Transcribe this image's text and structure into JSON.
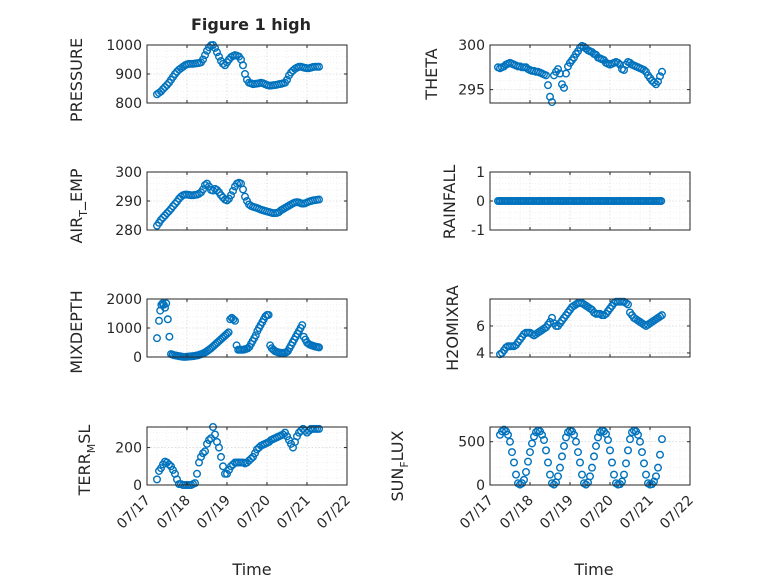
{
  "figure": {
    "title": "Figure 1 high",
    "xlabel": "Time"
  },
  "x_ticks": [
    "07/17",
    "07/18",
    "07/19",
    "07/20",
    "07/21",
    "07/22"
  ],
  "colors": {
    "marker": "#0072bd",
    "axis": "#262626",
    "grid": "#d0d0d0"
  },
  "chart_data": [
    {
      "type": "scatter",
      "ylabel": "PRESSURE",
      "ylim": [
        800,
        1000
      ],
      "yticks": [
        "800",
        "900",
        "1000"
      ],
      "grid": true,
      "x": [
        17.25,
        17.3,
        17.35,
        17.4,
        17.45,
        17.5,
        17.55,
        17.6,
        17.65,
        17.7,
        17.75,
        17.8,
        17.85,
        17.9,
        17.95,
        18.0,
        18.05,
        18.1,
        18.15,
        18.2,
        18.25,
        18.3,
        18.35,
        18.4,
        18.45,
        18.5,
        18.55,
        18.6,
        18.65,
        18.7,
        18.75,
        18.8,
        18.85,
        18.9,
        18.95,
        19.0,
        19.05,
        19.1,
        19.15,
        19.2,
        19.25,
        19.3,
        19.35,
        19.4,
        19.45,
        19.5,
        19.55,
        19.6,
        19.65,
        19.7,
        19.75,
        19.8,
        19.85,
        19.9,
        19.95,
        20.0,
        20.05,
        20.1,
        20.15,
        20.2,
        20.25,
        20.3,
        20.35,
        20.4,
        20.45,
        20.5,
        20.55,
        20.6,
        20.65,
        20.7,
        20.75,
        20.8,
        20.85,
        20.9,
        20.95,
        21.0,
        21.05,
        21.1,
        21.15,
        21.2,
        21.25,
        21.3
      ],
      "y": [
        830,
        835,
        840,
        848,
        855,
        862,
        870,
        880,
        890,
        900,
        908,
        915,
        920,
        925,
        930,
        933,
        935,
        935,
        935,
        936,
        937,
        938,
        940,
        950,
        965,
        980,
        992,
        999,
        1000,
        990,
        975,
        960,
        945,
        935,
        930,
        940,
        950,
        958,
        962,
        965,
        963,
        960,
        950,
        930,
        900,
        880,
        870,
        868,
        865,
        866,
        867,
        868,
        870,
        868,
        865,
        862,
        860,
        860,
        861,
        862,
        863,
        865,
        866,
        868,
        870,
        880,
        895,
        905,
        912,
        918,
        922,
        925,
        925,
        923,
        921,
        920,
        920,
        922,
        924,
        925,
        925,
        925
      ]
    },
    {
      "type": "scatter",
      "ylabel": "THETA",
      "ylim": [
        293.5,
        300
      ],
      "yticks": [
        "295",
        "300"
      ],
      "grid": true,
      "x": [
        17.2,
        17.25,
        17.3,
        17.35,
        17.4,
        17.45,
        17.5,
        17.55,
        17.6,
        17.65,
        17.7,
        17.75,
        17.8,
        17.85,
        17.9,
        17.95,
        18.0,
        18.05,
        18.1,
        18.15,
        18.2,
        18.25,
        18.3,
        18.35,
        18.4,
        18.45,
        18.5,
        18.55,
        18.6,
        18.65,
        18.7,
        18.75,
        18.8,
        18.85,
        18.9,
        18.95,
        19.0,
        19.05,
        19.1,
        19.15,
        19.2,
        19.25,
        19.3,
        19.35,
        19.4,
        19.45,
        19.5,
        19.55,
        19.6,
        19.65,
        19.7,
        19.75,
        19.8,
        19.85,
        19.9,
        19.95,
        20.0,
        20.05,
        20.1,
        20.15,
        20.2,
        20.25,
        20.3,
        20.35,
        20.4,
        20.45,
        20.5,
        20.55,
        20.6,
        20.65,
        20.7,
        20.75,
        20.8,
        20.85,
        20.9,
        20.95,
        21.0,
        21.05,
        21.1,
        21.15,
        21.2,
        21.25,
        21.3
      ],
      "y": [
        297.5,
        297.4,
        297.5,
        297.6,
        297.8,
        297.9,
        298.0,
        297.9,
        297.8,
        297.7,
        297.6,
        297.6,
        297.5,
        297.5,
        297.5,
        297.3,
        297.2,
        297.1,
        297.1,
        297.0,
        297.0,
        296.9,
        296.8,
        296.7,
        296.6,
        295.5,
        294.2,
        293.6,
        296.6,
        297.0,
        297.3,
        296.8,
        295.6,
        295.2,
        296.8,
        297.6,
        298.0,
        298.3,
        298.6,
        299.0,
        299.3,
        299.7,
        299.9,
        299.8,
        299.6,
        299.4,
        299.3,
        299.2,
        299.0,
        298.9,
        298.6,
        298.5,
        298.4,
        298.3,
        298.0,
        297.9,
        297.8,
        297.9,
        298.0,
        298.1,
        298.0,
        297.8,
        297.3,
        297.2,
        297.8,
        298.1,
        298.0,
        297.8,
        297.7,
        297.6,
        297.5,
        297.4,
        297.3,
        297.2,
        297.0,
        296.6,
        296.3,
        296.0,
        295.8,
        295.6,
        295.9,
        296.5,
        297.0
      ]
    },
    {
      "type": "scatter",
      "ylabel": "AIRTEMP",
      "ylim": [
        280,
        300
      ],
      "yticks": [
        "280",
        "290",
        "300"
      ],
      "grid": true,
      "x": [
        17.25,
        17.3,
        17.35,
        17.4,
        17.45,
        17.5,
        17.55,
        17.6,
        17.65,
        17.7,
        17.75,
        17.8,
        17.85,
        17.9,
        17.95,
        18.0,
        18.05,
        18.1,
        18.15,
        18.2,
        18.25,
        18.3,
        18.35,
        18.4,
        18.45,
        18.5,
        18.55,
        18.6,
        18.65,
        18.7,
        18.75,
        18.8,
        18.85,
        18.9,
        18.95,
        19.0,
        19.05,
        19.1,
        19.15,
        19.2,
        19.25,
        19.3,
        19.35,
        19.4,
        19.45,
        19.5,
        19.55,
        19.6,
        19.65,
        19.7,
        19.75,
        19.8,
        19.85,
        19.9,
        19.95,
        20.0,
        20.05,
        20.1,
        20.15,
        20.2,
        20.25,
        20.3,
        20.35,
        20.4,
        20.45,
        20.5,
        20.55,
        20.6,
        20.65,
        20.7,
        20.75,
        20.8,
        20.85,
        20.9,
        20.95,
        21.0,
        21.05,
        21.1,
        21.15,
        21.2,
        21.25,
        21.3
      ],
      "y": [
        281.5,
        282.5,
        283.5,
        284.3,
        285,
        285.8,
        286.5,
        287.3,
        288.2,
        289,
        289.8,
        290.8,
        291.5,
        292,
        292.2,
        292.2,
        292.1,
        292.0,
        292.0,
        292.1,
        292.2,
        292.5,
        293,
        294,
        295.5,
        296,
        295,
        293.8,
        293.6,
        294.2,
        293.8,
        293,
        292,
        291.2,
        290.5,
        290.2,
        290.8,
        292,
        293.5,
        295,
        296,
        296.3,
        296,
        294,
        291.5,
        290,
        288.8,
        288.3,
        288,
        287.8,
        287.6,
        287.3,
        287,
        286.8,
        286.6,
        286.4,
        286.2,
        286,
        285.8,
        285.8,
        285.9,
        286.2,
        286.8,
        287.2,
        287.6,
        288,
        288.4,
        288.8,
        289.2,
        289.5,
        289.6,
        289.5,
        289.2,
        289.1,
        289.2,
        289.5,
        289.8,
        290,
        290.2,
        290.3,
        290.4,
        290.5
      ]
    },
    {
      "type": "scatter",
      "ylabel": "RAINFALL",
      "ylim": [
        -1,
        1
      ],
      "yticks": [
        "-1",
        "0",
        "1"
      ],
      "grid": true,
      "x_start": 17.2,
      "x_end": 21.3,
      "x_step": 0.04,
      "constant_value": 0
    },
    {
      "type": "scatter",
      "ylabel": "MIXDEPTH",
      "ylim": [
        0,
        2000
      ],
      "yticks": [
        "0",
        "1000",
        "2000"
      ],
      "grid": true,
      "x": [
        17.25,
        17.3,
        17.33,
        17.36,
        17.39,
        17.42,
        17.45,
        17.48,
        17.52,
        17.56,
        17.6,
        17.64,
        17.68,
        17.72,
        17.76,
        17.8,
        17.84,
        17.88,
        17.92,
        17.96,
        18.0,
        18.04,
        18.08,
        18.12,
        18.16,
        18.2,
        18.24,
        18.28,
        18.32,
        18.36,
        18.4,
        18.44,
        18.48,
        18.52,
        18.56,
        18.6,
        18.64,
        18.68,
        18.72,
        18.76,
        18.8,
        18.84,
        18.88,
        18.92,
        18.96,
        19.0,
        19.04,
        19.08,
        19.12,
        19.16,
        19.2,
        19.24,
        19.28,
        19.32,
        19.36,
        19.4,
        19.44,
        19.48,
        19.52,
        19.56,
        19.6,
        19.64,
        19.68,
        19.72,
        19.76,
        19.8,
        19.84,
        19.88,
        19.92,
        19.96,
        20.0,
        20.04,
        20.08,
        20.12,
        20.16,
        20.2,
        20.24,
        20.28,
        20.32,
        20.36,
        20.4,
        20.44,
        20.48,
        20.52,
        20.56,
        20.6,
        20.64,
        20.68,
        20.72,
        20.76,
        20.8,
        20.84,
        20.88,
        20.92,
        20.96,
        21.0,
        21.04,
        21.08,
        21.12,
        21.16,
        21.2,
        21.24,
        21.28,
        21.3
      ],
      "y": [
        650,
        1250,
        1600,
        1800,
        1850,
        1800,
        1700,
        1850,
        1300,
        700,
        100,
        80,
        60,
        50,
        40,
        30,
        20,
        10,
        5,
        5,
        10,
        15,
        20,
        25,
        30,
        40,
        50,
        60,
        80,
        100,
        120,
        150,
        180,
        220,
        260,
        300,
        350,
        400,
        450,
        500,
        550,
        600,
        650,
        700,
        750,
        800,
        850,
        1300,
        1350,
        1300,
        1250,
        400,
        250,
        250,
        250,
        250,
        260,
        280,
        300,
        350,
        450,
        550,
        650,
        750,
        900,
        1000,
        1100,
        1200,
        1300,
        1400,
        1450,
        1450,
        400,
        300,
        250,
        200,
        180,
        160,
        150,
        140,
        140,
        150,
        160,
        200,
        300,
        400,
        500,
        600,
        700,
        800,
        900,
        1000,
        1100,
        700,
        600,
        500,
        450,
        420,
        400,
        380,
        360,
        350,
        340,
        330
      ]
    },
    {
      "type": "scatter",
      "ylabel": "H2OMIXRA",
      "ylim": [
        3.7,
        8
      ],
      "yticks": [
        "4",
        "6"
      ],
      "grid": true,
      "x": [
        17.25,
        17.3,
        17.35,
        17.4,
        17.45,
        17.5,
        17.55,
        17.6,
        17.65,
        17.7,
        17.75,
        17.8,
        17.85,
        17.9,
        17.95,
        18.0,
        18.05,
        18.1,
        18.15,
        18.2,
        18.25,
        18.3,
        18.35,
        18.4,
        18.45,
        18.5,
        18.55,
        18.6,
        18.65,
        18.7,
        18.75,
        18.8,
        18.85,
        18.9,
        18.95,
        19.0,
        19.05,
        19.1,
        19.15,
        19.2,
        19.25,
        19.3,
        19.35,
        19.4,
        19.45,
        19.5,
        19.55,
        19.6,
        19.65,
        19.7,
        19.75,
        19.8,
        19.85,
        19.9,
        19.95,
        20.0,
        20.05,
        20.1,
        20.15,
        20.2,
        20.25,
        20.3,
        20.35,
        20.4,
        20.45,
        20.5,
        20.55,
        20.6,
        20.65,
        20.7,
        20.75,
        20.8,
        20.85,
        20.9,
        20.95,
        21.0,
        21.05,
        21.1,
        21.15,
        21.2,
        21.25,
        21.3
      ],
      "y": [
        3.9,
        4.0,
        4.2,
        4.4,
        4.5,
        4.5,
        4.5,
        4.5,
        4.6,
        4.8,
        5.0,
        5.2,
        5.4,
        5.5,
        5.5,
        5.5,
        5.4,
        5.3,
        5.4,
        5.5,
        5.6,
        5.7,
        5.8,
        5.9,
        6.1,
        6.3,
        6.6,
        6.2,
        6.0,
        6.0,
        6.2,
        6.4,
        6.6,
        6.8,
        7.0,
        7.2,
        7.4,
        7.5,
        7.6,
        7.7,
        7.7,
        7.7,
        7.6,
        7.5,
        7.4,
        7.3,
        7.2,
        7.0,
        6.9,
        6.9,
        6.9,
        6.8,
        6.8,
        6.9,
        7.1,
        7.3,
        7.5,
        7.7,
        7.8,
        7.8,
        7.8,
        7.8,
        7.8,
        7.7,
        7.6,
        7.0,
        6.8,
        6.6,
        6.5,
        6.4,
        6.3,
        6.2,
        6.1,
        6.0,
        6.1,
        6.2,
        6.3,
        6.4,
        6.5,
        6.6,
        6.7,
        6.8
      ]
    },
    {
      "type": "scatter",
      "ylabel": "TERRMSL",
      "ylim": [
        0,
        310
      ],
      "yticks": [
        "0",
        "200"
      ],
      "grid": true,
      "x": [
        17.25,
        17.3,
        17.35,
        17.4,
        17.45,
        17.5,
        17.55,
        17.6,
        17.65,
        17.7,
        17.75,
        17.8,
        17.85,
        17.9,
        17.95,
        18.0,
        18.05,
        18.1,
        18.15,
        18.2,
        18.25,
        18.3,
        18.35,
        18.4,
        18.45,
        18.5,
        18.55,
        18.6,
        18.65,
        18.7,
        18.75,
        18.8,
        18.85,
        18.9,
        18.95,
        19.0,
        19.05,
        19.1,
        19.15,
        19.2,
        19.25,
        19.3,
        19.35,
        19.4,
        19.45,
        19.5,
        19.55,
        19.6,
        19.65,
        19.7,
        19.75,
        19.8,
        19.85,
        19.9,
        19.95,
        20.0,
        20.05,
        20.1,
        20.15,
        20.2,
        20.25,
        20.3,
        20.35,
        20.4,
        20.45,
        20.5,
        20.55,
        20.6,
        20.65,
        20.7,
        20.75,
        20.8,
        20.85,
        20.9,
        20.95,
        21.0,
        21.05,
        21.1,
        21.15,
        21.2,
        21.25,
        21.3
      ],
      "y": [
        30,
        75,
        90,
        110,
        125,
        120,
        110,
        100,
        80,
        60,
        30,
        5,
        5,
        0,
        0,
        0,
        0,
        0,
        5,
        10,
        60,
        120,
        150,
        170,
        180,
        220,
        240,
        250,
        310,
        270,
        230,
        200,
        150,
        100,
        60,
        60,
        80,
        100,
        110,
        120,
        120,
        120,
        120,
        120,
        115,
        120,
        130,
        140,
        150,
        170,
        190,
        200,
        210,
        215,
        220,
        225,
        230,
        240,
        245,
        250,
        255,
        260,
        265,
        270,
        280,
        260,
        240,
        220,
        200,
        230,
        260,
        280,
        290,
        300,
        290,
        280,
        290,
        300,
        300,
        300,
        300,
        300
      ]
    },
    {
      "type": "scatter",
      "ylabel": "SUNFLUX",
      "ylim": [
        0,
        670
      ],
      "yticks": [
        "0",
        "500"
      ],
      "grid": true,
      "x": [
        17.25,
        17.3,
        17.35,
        17.4,
        17.45,
        17.5,
        17.55,
        17.6,
        17.65,
        17.7,
        17.75,
        17.8,
        17.85,
        17.9,
        17.95,
        18.0,
        18.05,
        18.1,
        18.15,
        18.2,
        18.25,
        18.3,
        18.35,
        18.4,
        18.45,
        18.5,
        18.55,
        18.6,
        18.65,
        18.7,
        18.75,
        18.8,
        18.85,
        18.9,
        18.95,
        19.0,
        19.05,
        19.1,
        19.15,
        19.2,
        19.25,
        19.3,
        19.35,
        19.4,
        19.45,
        19.5,
        19.55,
        19.6,
        19.65,
        19.7,
        19.75,
        19.8,
        19.85,
        19.9,
        19.95,
        20.0,
        20.05,
        20.1,
        20.15,
        20.2,
        20.25,
        20.3,
        20.35,
        20.4,
        20.45,
        20.5,
        20.55,
        20.6,
        20.65,
        20.7,
        20.75,
        20.8,
        20.85,
        20.9,
        20.95,
        21.0,
        21.05,
        21.1,
        21.15,
        21.2,
        21.25,
        21.3
      ],
      "y": [
        580,
        620,
        640,
        620,
        580,
        500,
        380,
        260,
        120,
        20,
        5,
        20,
        60,
        150,
        270,
        380,
        480,
        560,
        610,
        630,
        620,
        580,
        520,
        400,
        260,
        120,
        20,
        5,
        30,
        100,
        200,
        330,
        450,
        550,
        610,
        630,
        620,
        580,
        500,
        380,
        260,
        120,
        20,
        5,
        30,
        100,
        200,
        330,
        450,
        550,
        610,
        630,
        620,
        590,
        520,
        400,
        260,
        120,
        20,
        5,
        10,
        40,
        120,
        250,
        400,
        530,
        610,
        630,
        620,
        580,
        500,
        380,
        250,
        120,
        20,
        5,
        10,
        40,
        100,
        200,
        350,
        530
      ]
    }
  ]
}
